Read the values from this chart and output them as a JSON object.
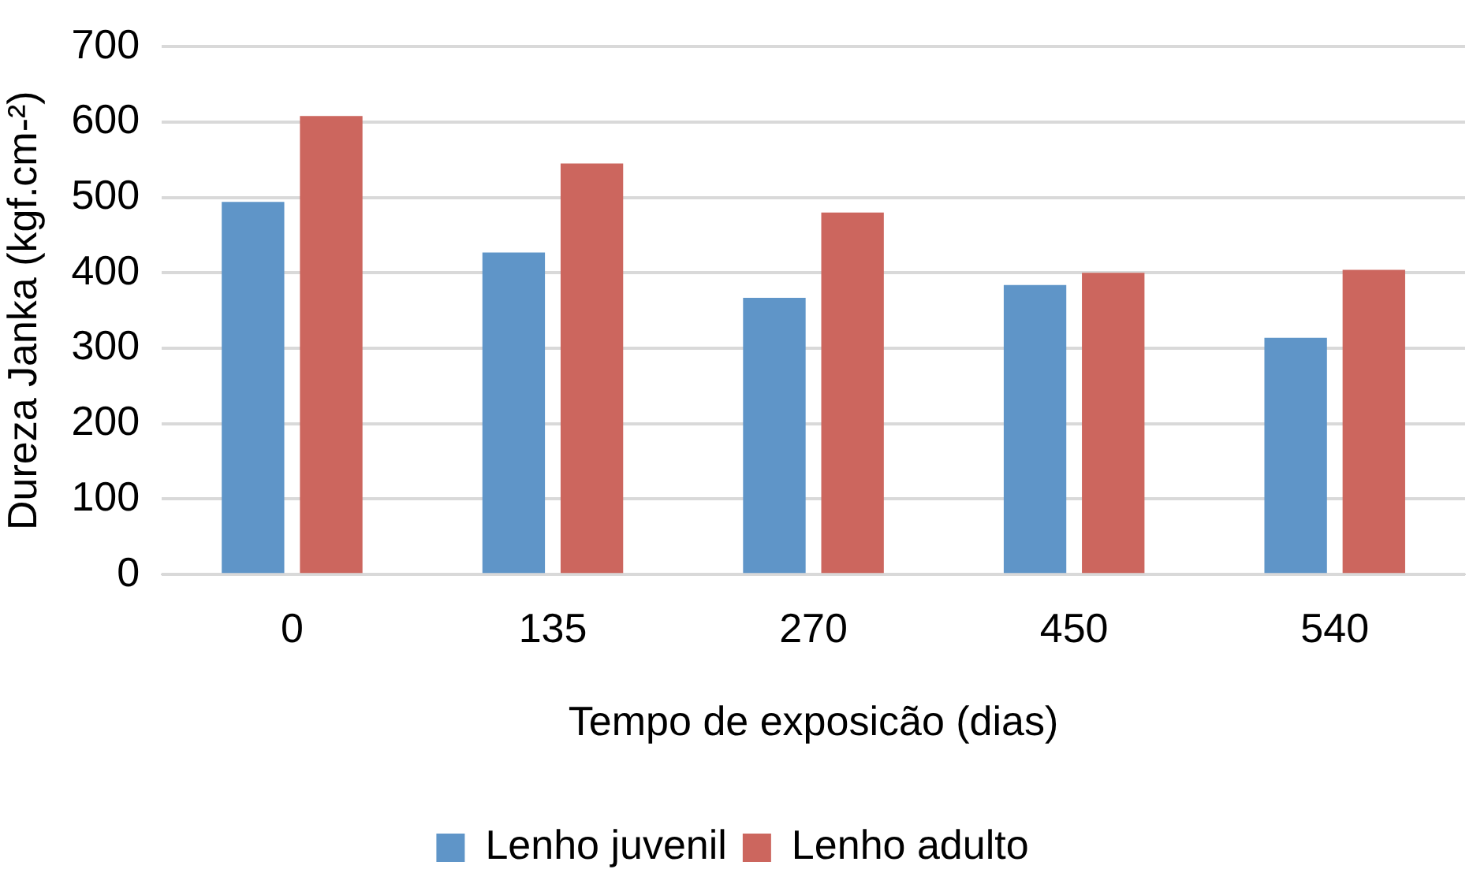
{
  "chart_data": {
    "type": "bar",
    "xlabel": "Tempo de exposicão (dias)",
    "ylabel": "Dureza Janka (kgf.cm-²)",
    "categories": [
      "0",
      "135",
      "270",
      "450",
      "540"
    ],
    "series": [
      {
        "name": "Lenho juvenil",
        "color": "#5f95c8",
        "values": [
          494,
          427,
          367,
          384,
          314
        ]
      },
      {
        "name": "Lenho adulto",
        "color": "#cc665e",
        "values": [
          608,
          545,
          480,
          400,
          404
        ]
      }
    ],
    "ylim": [
      0,
      700
    ],
    "yticks": [
      0,
      100,
      200,
      300,
      400,
      500,
      600,
      700
    ],
    "grid": "y",
    "legend": "bottom"
  }
}
